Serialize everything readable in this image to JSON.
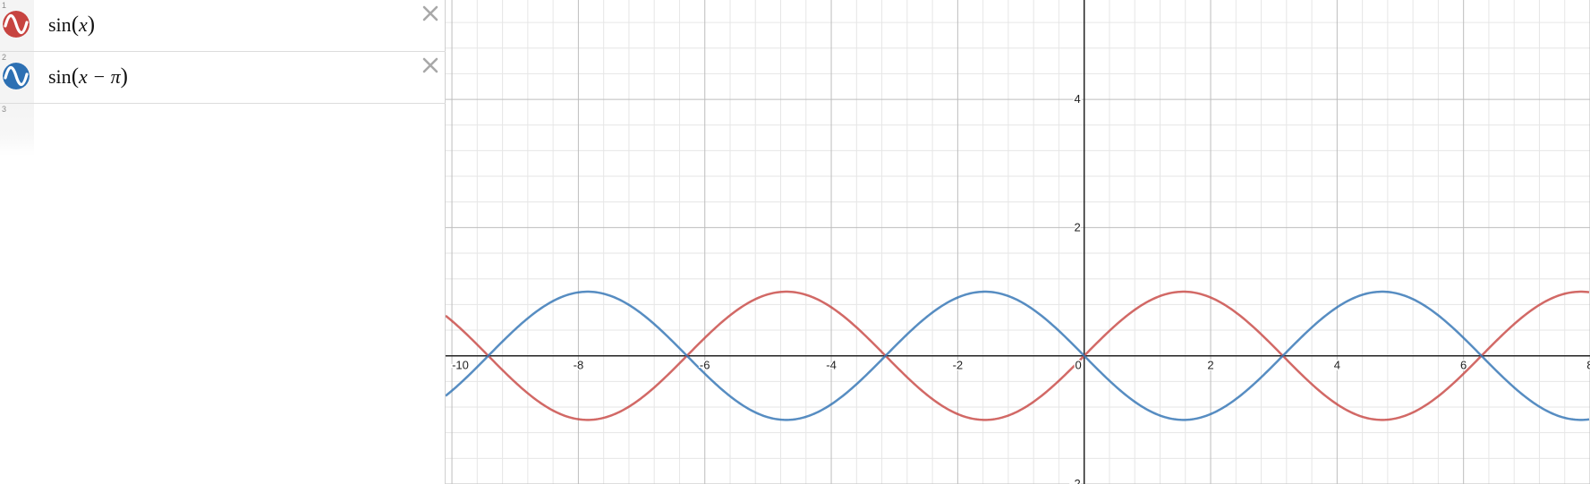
{
  "expressions": [
    {
      "number": "1",
      "fn": "sin",
      "open": "(",
      "body": "x",
      "close": ")",
      "color": "#c74440",
      "icon": "sine-wave-icon"
    },
    {
      "number": "2",
      "fn": "sin",
      "open": "(",
      "body": "x − π",
      "close": ")",
      "color": "#2d70b3",
      "icon": "sine-wave-icon"
    },
    {
      "number": "3"
    }
  ],
  "graph": {
    "curve_colors": {
      "sin_x": "#c74440",
      "sin_x_minus_pi": "#2d70b3"
    },
    "tick_labels_x": [
      "-10",
      "-8",
      "-6",
      "-4",
      "-2",
      "0",
      "2",
      "4",
      "6",
      "8"
    ],
    "tick_labels_y": [
      "4",
      "2",
      "-2"
    ]
  },
  "chart_data": {
    "type": "line",
    "title": "",
    "xlabel": "",
    "ylabel": "",
    "xlim": [
      -10.1,
      8.0
    ],
    "ylim": [
      -2.0,
      5.55
    ],
    "grid": true,
    "x_ticks": [
      -10,
      -8,
      -6,
      -4,
      -2,
      0,
      2,
      4,
      6,
      8
    ],
    "y_ticks": [
      4,
      2,
      -2
    ],
    "series": [
      {
        "expression": "sin(x)",
        "color": "#c74440"
      },
      {
        "expression": "sin(x − π)",
        "color": "#2d70b3"
      }
    ]
  }
}
